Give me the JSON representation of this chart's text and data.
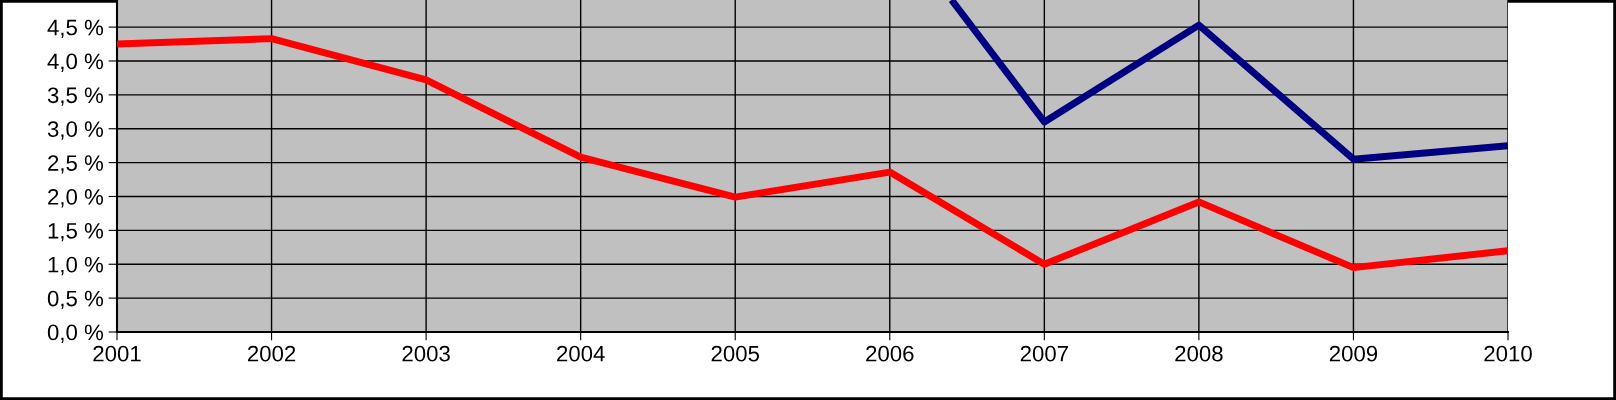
{
  "chart_data": {
    "type": "line",
    "x": [
      2001,
      2002,
      2003,
      2004,
      2005,
      2006,
      2007,
      2008,
      2009,
      2010
    ],
    "series": [
      {
        "color": "#ff0000",
        "values": [
          4.25,
          4.33,
          3.72,
          2.58,
          1.99,
          2.36,
          1.0,
          1.92,
          0.95,
          1.2
        ]
      },
      {
        "color": "#000080",
        "x": [
          2006.4,
          2007,
          2008,
          2009,
          2010
        ],
        "values": [
          4.9,
          3.1,
          4.53,
          2.55,
          2.75
        ]
      }
    ],
    "xlim": [
      2001,
      2010
    ],
    "xticks": [
      2001,
      2002,
      2003,
      2004,
      2005,
      2006,
      2007,
      2008,
      2009,
      2010
    ],
    "ylim": [
      0,
      4.9
    ],
    "yticks": [
      {
        "value": 0,
        "label": "0,0 %"
      },
      {
        "value": 0.5,
        "label": "0,5 %"
      },
      {
        "value": 1,
        "label": "1,0 %"
      },
      {
        "value": 1.5,
        "label": "1,5 %"
      },
      {
        "value": 2,
        "label": "2,0 %"
      },
      {
        "value": 2.5,
        "label": "2,5 %"
      },
      {
        "value": 3,
        "label": "3,0 %"
      },
      {
        "value": 3.5,
        "label": "3,5 %"
      },
      {
        "value": 4,
        "label": "4,0 %"
      },
      {
        "value": 4.5,
        "label": "4,5 %"
      }
    ],
    "grid": true,
    "marker": "none",
    "line_style": "solid"
  }
}
